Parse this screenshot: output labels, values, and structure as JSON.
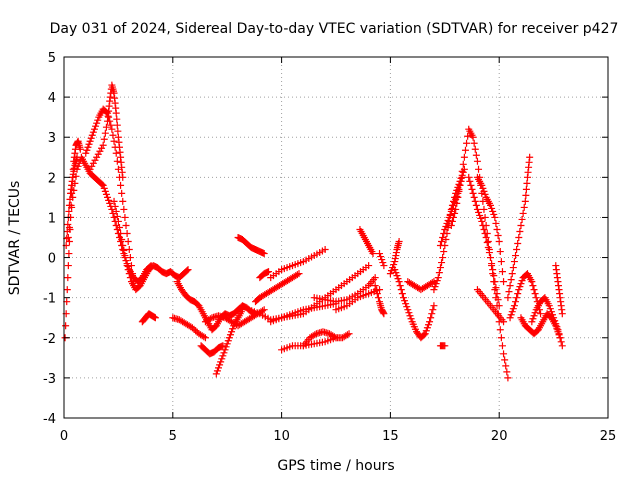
{
  "chart_data": {
    "type": "scatter",
    "title": "Day 031 of 2024, Sidereal Day-to-day VTEC variation (SDTVAR) for receiver p427",
    "xlabel": "GPS time / hours",
    "ylabel": "SDTVAR / TECUs",
    "xlim": [
      0,
      25
    ],
    "ylim": [
      -4,
      5
    ],
    "xticks": [
      0,
      5,
      10,
      15,
      20,
      25
    ],
    "yticks": [
      -4,
      -3,
      -2,
      -1,
      0,
      1,
      2,
      3,
      4,
      5
    ],
    "grid": true,
    "marker": "+",
    "color": "#ff0000",
    "series": [
      {
        "name": "t1",
        "x": [
          0.05,
          0.15,
          0.25,
          0.35,
          0.45,
          0.55,
          0.65,
          0.75
        ],
        "y": [
          -2.0,
          -0.8,
          0.4,
          1.6,
          2.4,
          2.8,
          2.9,
          2.7
        ]
      },
      {
        "name": "t2",
        "x": [
          0.1,
          0.2,
          0.3,
          0.4,
          0.5,
          0.6
        ],
        "y": [
          0.3,
          1.0,
          1.6,
          2.0,
          2.3,
          2.5
        ]
      },
      {
        "name": "t3",
        "x": [
          0.2,
          0.4,
          0.6,
          0.8,
          1.0,
          1.2,
          1.4,
          1.6,
          1.8,
          2.0,
          2.2,
          2.4,
          2.6,
          2.8,
          3.0,
          3.2,
          3.4,
          3.6,
          3.8,
          4.0
        ],
        "y": [
          0.5,
          1.5,
          2.2,
          2.5,
          2.3,
          2.1,
          2.0,
          1.9,
          1.8,
          1.5,
          1.2,
          0.8,
          0.4,
          0.0,
          -0.3,
          -0.5,
          -0.6,
          -0.5,
          -0.3,
          -0.2
        ]
      },
      {
        "name": "t4",
        "x": [
          1.0,
          1.2,
          1.4,
          1.6,
          1.8,
          2.0,
          2.2,
          2.4,
          2.6,
          2.8,
          3.0,
          3.2
        ],
        "y": [
          2.6,
          2.9,
          3.2,
          3.5,
          3.7,
          3.6,
          3.2,
          2.6,
          1.8,
          1.0,
          0.2,
          -0.6
        ]
      },
      {
        "name": "t5",
        "x": [
          1.2,
          1.5,
          1.8,
          2.0,
          2.1,
          2.2,
          2.3,
          2.4,
          2.5,
          2.6,
          2.7
        ],
        "y": [
          2.2,
          2.5,
          2.8,
          3.4,
          3.9,
          4.3,
          4.1,
          3.6,
          3.0,
          2.5,
          2.0
        ]
      },
      {
        "name": "t6",
        "x": [
          2.3,
          2.5,
          2.7,
          2.9,
          3.1,
          3.3,
          3.5,
          3.7,
          3.9,
          4.1,
          4.3,
          4.5,
          4.7,
          4.9,
          5.1,
          5.3,
          5.5,
          5.7
        ],
        "y": [
          1.4,
          0.9,
          0.3,
          -0.2,
          -0.6,
          -0.8,
          -0.7,
          -0.5,
          -0.3,
          -0.2,
          -0.25,
          -0.35,
          -0.4,
          -0.35,
          -0.45,
          -0.5,
          -0.4,
          -0.3
        ]
      },
      {
        "name": "t7",
        "x": [
          3.6,
          3.75,
          3.9,
          4.05,
          4.2
        ],
        "y": [
          -1.6,
          -1.5,
          -1.4,
          -1.45,
          -1.5
        ]
      },
      {
        "name": "t8",
        "x": [
          5.2,
          5.4,
          5.6,
          5.8,
          6.0,
          6.2,
          6.4,
          6.6,
          6.8,
          7.0,
          7.2,
          7.4,
          7.6,
          7.8,
          8.0,
          8.2,
          8.4,
          8.6,
          8.8
        ],
        "y": [
          -0.6,
          -0.8,
          -0.95,
          -1.05,
          -1.1,
          -1.2,
          -1.4,
          -1.6,
          -1.8,
          -1.7,
          -1.5,
          -1.4,
          -1.45,
          -1.4,
          -1.3,
          -1.2,
          -1.25,
          -1.35,
          -1.4
        ]
      },
      {
        "name": "t9",
        "x": [
          5.0,
          5.3,
          5.6,
          5.9,
          6.2,
          6.5
        ],
        "y": [
          -1.5,
          -1.55,
          -1.65,
          -1.75,
          -1.9,
          -2.0
        ]
      },
      {
        "name": "t10",
        "x": [
          6.3,
          6.5,
          6.7,
          6.9,
          7.1,
          7.3
        ],
        "y": [
          -2.2,
          -2.3,
          -2.4,
          -2.35,
          -2.25,
          -2.2
        ]
      },
      {
        "name": "t11",
        "x": [
          7.0,
          7.2,
          7.4,
          7.6,
          7.8,
          8.0,
          8.2
        ],
        "y": [
          -2.9,
          -2.6,
          -2.3,
          -2.0,
          -1.7,
          -1.5,
          -1.3
        ]
      },
      {
        "name": "t12",
        "x": [
          6.5,
          6.8,
          7.1,
          7.4,
          7.7,
          8.0,
          8.3,
          8.6,
          8.9,
          9.2
        ],
        "y": [
          -1.6,
          -1.5,
          -1.45,
          -1.5,
          -1.6,
          -1.7,
          -1.6,
          -1.5,
          -1.4,
          -1.3
        ]
      },
      {
        "name": "t13",
        "x": [
          8.0,
          8.2,
          8.4,
          8.6,
          8.8,
          9.0,
          9.2
        ],
        "y": [
          0.5,
          0.45,
          0.35,
          0.25,
          0.2,
          0.15,
          0.1
        ]
      },
      {
        "name": "t14",
        "x": [
          9.0,
          9.2,
          9.4
        ],
        "y": [
          -0.5,
          -0.4,
          -0.35
        ]
      },
      {
        "name": "t15",
        "x": [
          8.8,
          9.0,
          9.3,
          9.6,
          9.9,
          10.2,
          10.5,
          10.8
        ],
        "y": [
          -1.1,
          -1.0,
          -0.9,
          -0.8,
          -0.7,
          -0.6,
          -0.5,
          -0.4
        ]
      },
      {
        "name": "t16",
        "x": [
          9.5,
          10.0,
          10.5,
          11.0,
          11.5,
          12.0
        ],
        "y": [
          -0.5,
          -0.3,
          -0.2,
          -0.1,
          0.05,
          0.2
        ]
      },
      {
        "name": "t17",
        "x": [
          8.5,
          9.0,
          9.5,
          10.0,
          10.5,
          11.0,
          11.5,
          12.0,
          12.5
        ],
        "y": [
          -1.3,
          -1.4,
          -1.55,
          -1.5,
          -1.4,
          -1.3,
          -1.25,
          -1.2,
          -1.15
        ]
      },
      {
        "name": "t18",
        "x": [
          9.5,
          10.0,
          10.5,
          11.0,
          11.5,
          12.0,
          12.5,
          13.0,
          13.5,
          14.0
        ],
        "y": [
          -1.6,
          -1.5,
          -1.45,
          -1.4,
          -1.2,
          -1.0,
          -0.8,
          -0.6,
          -0.4,
          -0.2
        ]
      },
      {
        "name": "t19",
        "x": [
          10.0,
          10.5,
          11.0,
          11.5,
          12.0,
          12.5
        ],
        "y": [
          -2.3,
          -2.2,
          -2.2,
          -2.15,
          -2.1,
          -2.0
        ]
      },
      {
        "name": "t20",
        "x": [
          11.0,
          11.3,
          11.6,
          11.9,
          12.2,
          12.5,
          12.8,
          13.1
        ],
        "y": [
          -2.2,
          -2.0,
          -1.9,
          -1.85,
          -1.9,
          -2.0,
          -2.0,
          -1.9
        ]
      },
      {
        "name": "t21",
        "x": [
          11.5,
          12.0,
          12.5,
          13.0,
          13.5,
          14.0,
          14.3
        ],
        "y": [
          -1.0,
          -1.05,
          -1.1,
          -1.05,
          -0.9,
          -0.7,
          -0.5
        ]
      },
      {
        "name": "t22",
        "x": [
          12.5,
          13.0,
          13.5,
          14.0,
          14.5
        ],
        "y": [
          -1.3,
          -1.2,
          -1.0,
          -0.9,
          -0.8
        ]
      },
      {
        "name": "t23",
        "x": [
          13.6,
          13.8,
          14.0,
          14.2
        ],
        "y": [
          0.7,
          0.5,
          0.3,
          0.1
        ]
      },
      {
        "name": "t24",
        "x": [
          14.3,
          14.5,
          14.6,
          14.7
        ],
        "y": [
          -0.7,
          -1.1,
          -1.3,
          -1.4
        ]
      },
      {
        "name": "t25",
        "x": [
          14.5,
          14.7
        ],
        "y": [
          0.1,
          -0.2
        ]
      },
      {
        "name": "t26",
        "x": [
          15.0,
          15.2,
          15.3,
          15.4
        ],
        "y": [
          -0.4,
          -0.1,
          0.2,
          0.4
        ]
      },
      {
        "name": "t27",
        "x": [
          15.2,
          15.4,
          15.6,
          15.8,
          16.0,
          16.2,
          16.4,
          16.6,
          16.8,
          17.0
        ],
        "y": [
          -0.3,
          -0.6,
          -1.0,
          -1.3,
          -1.6,
          -1.85,
          -2.0,
          -1.9,
          -1.6,
          -1.2
        ]
      },
      {
        "name": "t28",
        "x": [
          15.8,
          16.1,
          16.4,
          16.7,
          17.0
        ],
        "y": [
          -0.6,
          -0.7,
          -0.8,
          -0.7,
          -0.6
        ]
      },
      {
        "name": "t29",
        "x": [
          17.0,
          17.2,
          17.4,
          17.6,
          17.8,
          18.0,
          18.2,
          18.4
        ],
        "y": [
          -0.8,
          -0.5,
          0.0,
          0.6,
          1.2,
          1.6,
          1.9,
          2.2
        ]
      },
      {
        "name": "t30",
        "x": [
          17.3,
          17.5,
          17.7,
          17.9,
          18.1,
          18.3
        ],
        "y": [
          0.3,
          0.7,
          1.0,
          1.3,
          1.6,
          2.0
        ]
      },
      {
        "name": "t31",
        "x": [
          17.8,
          18.0,
          18.2,
          18.4,
          18.6,
          18.8,
          19.0,
          19.2,
          19.4,
          19.6,
          19.8,
          20.0,
          20.2,
          20.4
        ],
        "y": [
          0.8,
          1.2,
          1.8,
          2.5,
          3.2,
          3.0,
          2.4,
          1.6,
          0.8,
          0.0,
          -0.8,
          -1.6,
          -2.4,
          -3.0
        ]
      },
      {
        "name": "t32",
        "x": [
          18.6,
          18.8,
          19.0,
          19.2,
          19.4,
          19.6,
          19.8,
          20.0
        ],
        "y": [
          2.0,
          1.6,
          1.2,
          0.9,
          0.5,
          0.0,
          -0.6,
          -1.2
        ]
      },
      {
        "name": "t33",
        "x": [
          19.0,
          19.2,
          19.4,
          19.6,
          19.8,
          20.0,
          20.2
        ],
        "y": [
          2.0,
          1.8,
          1.5,
          1.3,
          1.0,
          0.4,
          -0.6
        ]
      },
      {
        "name": "t34",
        "x": [
          19.0,
          19.3,
          19.6,
          19.9,
          20.2
        ],
        "y": [
          -0.8,
          -1.0,
          -1.2,
          -1.4,
          -1.6
        ]
      },
      {
        "name": "t35",
        "x": [
          17.3,
          17.5
        ],
        "y": [
          -2.2,
          -2.2
        ]
      },
      {
        "name": "t36",
        "x": [
          20.4,
          20.6,
          20.8,
          21.0,
          21.2,
          21.3,
          21.4
        ],
        "y": [
          -1.0,
          -0.4,
          0.2,
          0.8,
          1.4,
          2.0,
          2.5
        ]
      },
      {
        "name": "t37",
        "x": [
          20.5,
          20.7,
          20.9,
          21.1,
          21.3,
          21.5,
          21.7,
          21.9
        ],
        "y": [
          -1.5,
          -1.2,
          -0.8,
          -0.5,
          -0.4,
          -0.6,
          -1.0,
          -1.4
        ]
      },
      {
        "name": "t38",
        "x": [
          21.0,
          21.2,
          21.4,
          21.6,
          21.8,
          22.0,
          22.2,
          22.4,
          22.6,
          22.8
        ],
        "y": [
          -1.5,
          -1.7,
          -1.8,
          -1.9,
          -1.8,
          -1.6,
          -1.4,
          -1.5,
          -1.7,
          -2.0
        ]
      },
      {
        "name": "t39",
        "x": [
          21.5,
          21.7,
          21.9,
          22.1,
          22.3,
          22.5,
          22.7,
          22.9
        ],
        "y": [
          -1.6,
          -1.3,
          -1.1,
          -1.0,
          -1.2,
          -1.5,
          -1.8,
          -2.2
        ]
      },
      {
        "name": "t40",
        "x": [
          22.6,
          22.7,
          22.8,
          22.9
        ],
        "y": [
          -0.2,
          -0.6,
          -1.0,
          -1.4
        ]
      }
    ]
  }
}
